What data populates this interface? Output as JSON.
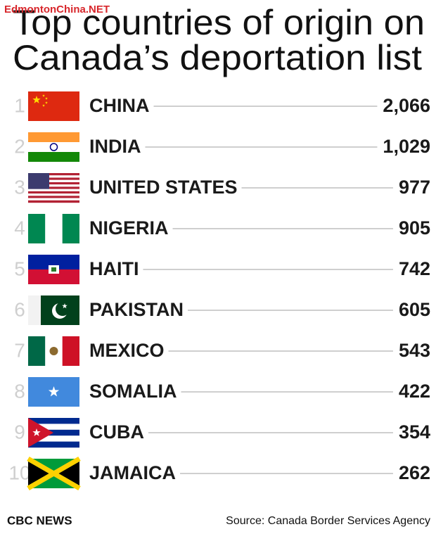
{
  "watermark": "EdmontonChina.NET",
  "title": [
    "Top countries of origin on",
    "Canada’s deportation list"
  ],
  "rows": [
    {
      "rank": "1",
      "country": "CHINA",
      "value": "2,066"
    },
    {
      "rank": "2",
      "country": "INDIA",
      "value": "1,029"
    },
    {
      "rank": "3",
      "country": "UNITED STATES",
      "value": "977"
    },
    {
      "rank": "4",
      "country": "NIGERIA",
      "value": "905"
    },
    {
      "rank": "5",
      "country": "HAITI",
      "value": "742"
    },
    {
      "rank": "6",
      "country": "PAKISTAN",
      "value": "605"
    },
    {
      "rank": "7",
      "country": "MEXICO",
      "value": "543"
    },
    {
      "rank": "8",
      "country": "SOMALIA",
      "value": "422"
    },
    {
      "rank": "9",
      "country": "CUBA",
      "value": "354"
    },
    {
      "rank": "10",
      "country": "JAMAICA",
      "value": "262"
    }
  ],
  "footer": {
    "brand": "CBC NEWS",
    "source": "Source: Canada Border Services Agency"
  }
}
